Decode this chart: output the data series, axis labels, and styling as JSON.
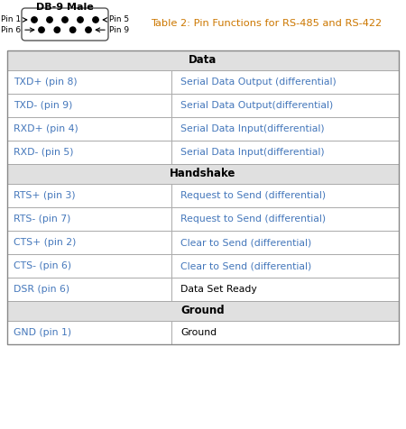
{
  "title": "Table 2: Pin Functions for RS-485 and RS-422",
  "db9_label": "DB-9 Male",
  "sections": [
    {
      "header": "Data",
      "rows": [
        [
          "TXD+ (pin 8)",
          "Serial Data Output (differential)"
        ],
        [
          "TXD- (pin 9)",
          "Serial Data Output(differential)"
        ],
        [
          "RXD+ (pin 4)",
          "Serial Data Input(differential)"
        ],
        [
          "RXD- (pin 5)",
          "Serial Data Input(differential)"
        ]
      ]
    },
    {
      "header": "Handshake",
      "rows": [
        [
          "RTS+ (pin 3)",
          "Request to Send (differential)"
        ],
        [
          "RTS- (pin 7)",
          "Request to Send (differential)"
        ],
        [
          "CTS+ (pin 2)",
          "Clear to Send (differential)"
        ],
        [
          "CTS- (pin 6)",
          "Clear to Send (differential)"
        ],
        [
          "DSR (pin 6)",
          "Data Set Ready"
        ]
      ]
    },
    {
      "header": "Ground",
      "rows": [
        [
          "GND (pin 1)",
          "Ground"
        ]
      ]
    }
  ],
  "header_bg": "#e0e0e0",
  "row_bg": "#ffffff",
  "border_color": "#aaaaaa",
  "blue_color": "#4477bb",
  "black_color": "#000000",
  "title_color": "#cc7700",
  "figsize": [
    4.5,
    4.76
  ],
  "dpi": 100
}
